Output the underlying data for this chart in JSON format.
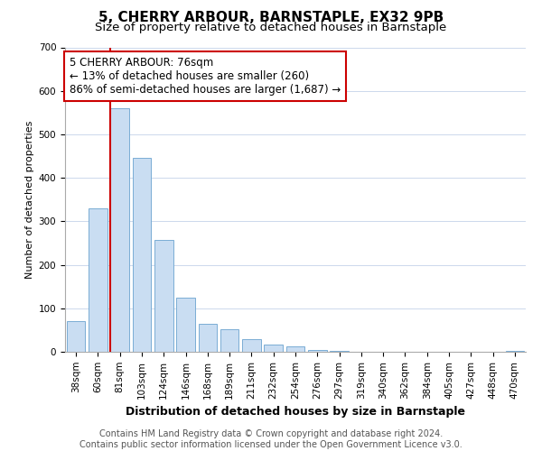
{
  "title": "5, CHERRY ARBOUR, BARNSTAPLE, EX32 9PB",
  "subtitle": "Size of property relative to detached houses in Barnstaple",
  "xlabel": "Distribution of detached houses by size in Barnstaple",
  "ylabel": "Number of detached properties",
  "bar_labels": [
    "38sqm",
    "60sqm",
    "81sqm",
    "103sqm",
    "124sqm",
    "146sqm",
    "168sqm",
    "189sqm",
    "211sqm",
    "232sqm",
    "254sqm",
    "276sqm",
    "297sqm",
    "319sqm",
    "340sqm",
    "362sqm",
    "384sqm",
    "405sqm",
    "427sqm",
    "448sqm",
    "470sqm"
  ],
  "bar_values": [
    70,
    330,
    560,
    445,
    258,
    125,
    65,
    52,
    30,
    17,
    13,
    5,
    2,
    1,
    0,
    0,
    0,
    0,
    0,
    0,
    3
  ],
  "bar_color": "#c9ddf2",
  "bar_edge_color": "#7aadd4",
  "marker_line_index": 2,
  "marker_line_color": "#cc0000",
  "annotation_title": "5 CHERRY ARBOUR: 76sqm",
  "annotation_line1": "← 13% of detached houses are smaller (260)",
  "annotation_line2": "86% of semi-detached houses are larger (1,687) →",
  "annotation_box_color": "#ffffff",
  "annotation_box_edge": "#cc0000",
  "ylim": [
    0,
    700
  ],
  "yticks": [
    0,
    100,
    200,
    300,
    400,
    500,
    600,
    700
  ],
  "footer_line1": "Contains HM Land Registry data © Crown copyright and database right 2024.",
  "footer_line2": "Contains public sector information licensed under the Open Government Licence v3.0.",
  "title_fontsize": 11,
  "subtitle_fontsize": 9.5,
  "xlabel_fontsize": 9,
  "ylabel_fontsize": 8,
  "tick_fontsize": 7.5,
  "footer_fontsize": 7,
  "annotation_fontsize": 8.5,
  "background_color": "#ffffff",
  "grid_color": "#ccd8ec"
}
